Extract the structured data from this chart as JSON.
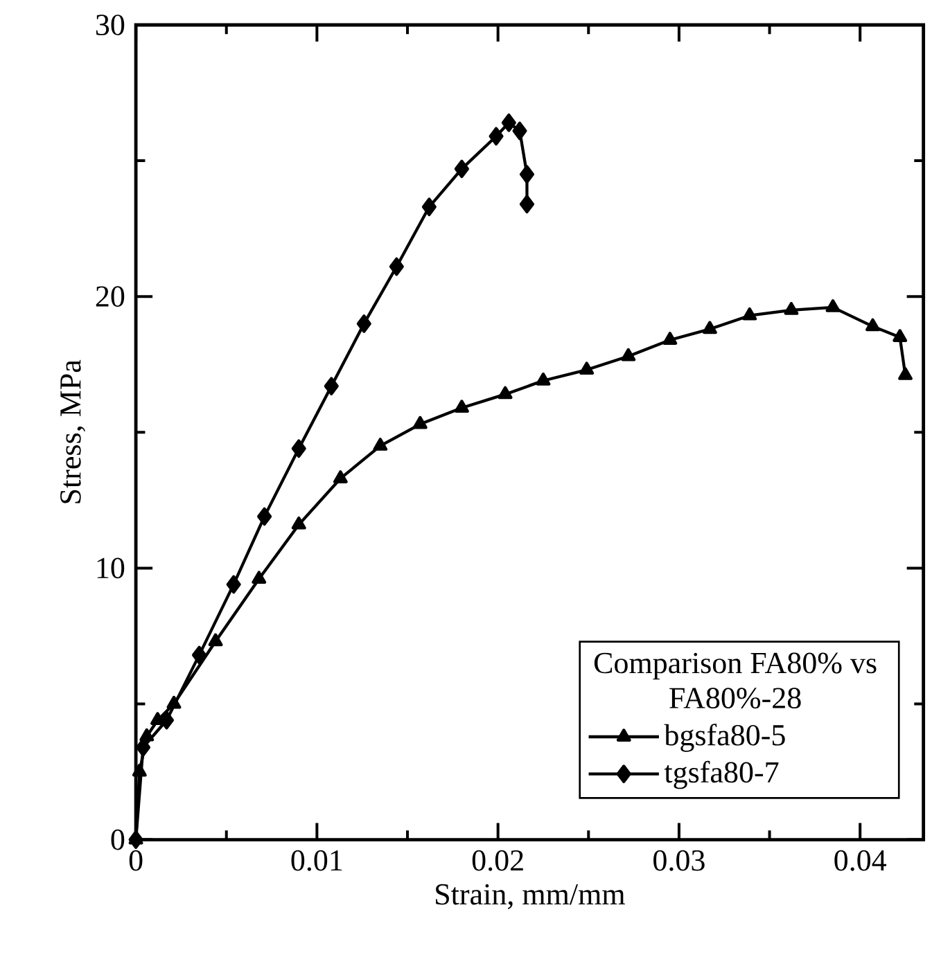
{
  "chart_data": {
    "type": "line",
    "xlabel": "Strain, mm/mm",
    "ylabel": "Stress, MPa",
    "legend_title": "Comparison FA80% vs FA80%-28",
    "xlim": [
      0,
      0.0435
    ],
    "ylim": [
      0,
      30
    ],
    "xticks": [
      0,
      0.01,
      0.02,
      0.03,
      0.04
    ],
    "yticks": [
      0,
      10,
      20,
      30
    ],
    "legend": "bottom right",
    "line_style": "solid",
    "series": [
      {
        "name": "bgsfa80-5",
        "color": "#000000",
        "marker": "triangle",
        "x": [
          0,
          0.0002,
          0.0006,
          0.0012,
          0.0021,
          0.0044,
          0.0068,
          0.009,
          0.0113,
          0.0135,
          0.0157,
          0.018,
          0.0204,
          0.0225,
          0.0249,
          0.0272,
          0.0295,
          0.0317,
          0.0339,
          0.0362,
          0.0385,
          0.0407,
          0.0422,
          0.0425
        ],
        "values": [
          0,
          2.5,
          3.8,
          4.4,
          5.0,
          7.3,
          9.6,
          11.6,
          13.3,
          14.5,
          15.3,
          15.9,
          16.4,
          16.9,
          17.3,
          17.8,
          18.4,
          18.8,
          19.3,
          19.5,
          19.6,
          18.9,
          18.5,
          17.1
        ]
      },
      {
        "name": "tgsfa80-7",
        "color": "#000000",
        "marker": "diamond",
        "x": [
          0,
          0.0004,
          0.0017,
          0.0035,
          0.0054,
          0.0071,
          0.009,
          0.0108,
          0.0126,
          0.0144,
          0.0162,
          0.018,
          0.0199,
          0.0206,
          0.0212,
          0.0216,
          0.0216
        ],
        "values": [
          0,
          3.4,
          4.4,
          6.8,
          9.4,
          11.9,
          14.4,
          16.7,
          19.0,
          21.1,
          23.3,
          24.7,
          25.9,
          26.4,
          26.1,
          24.5,
          23.4
        ]
      }
    ]
  }
}
